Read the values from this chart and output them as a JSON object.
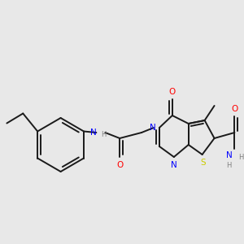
{
  "background_color": "#e8e8e8",
  "bond_color": "#1a1a1a",
  "atom_colors": {
    "N": "#0000ff",
    "O": "#ff0000",
    "S": "#cccc00",
    "C": "#1a1a1a",
    "H": "#808080"
  },
  "lw": 1.4,
  "fs": 7.5
}
